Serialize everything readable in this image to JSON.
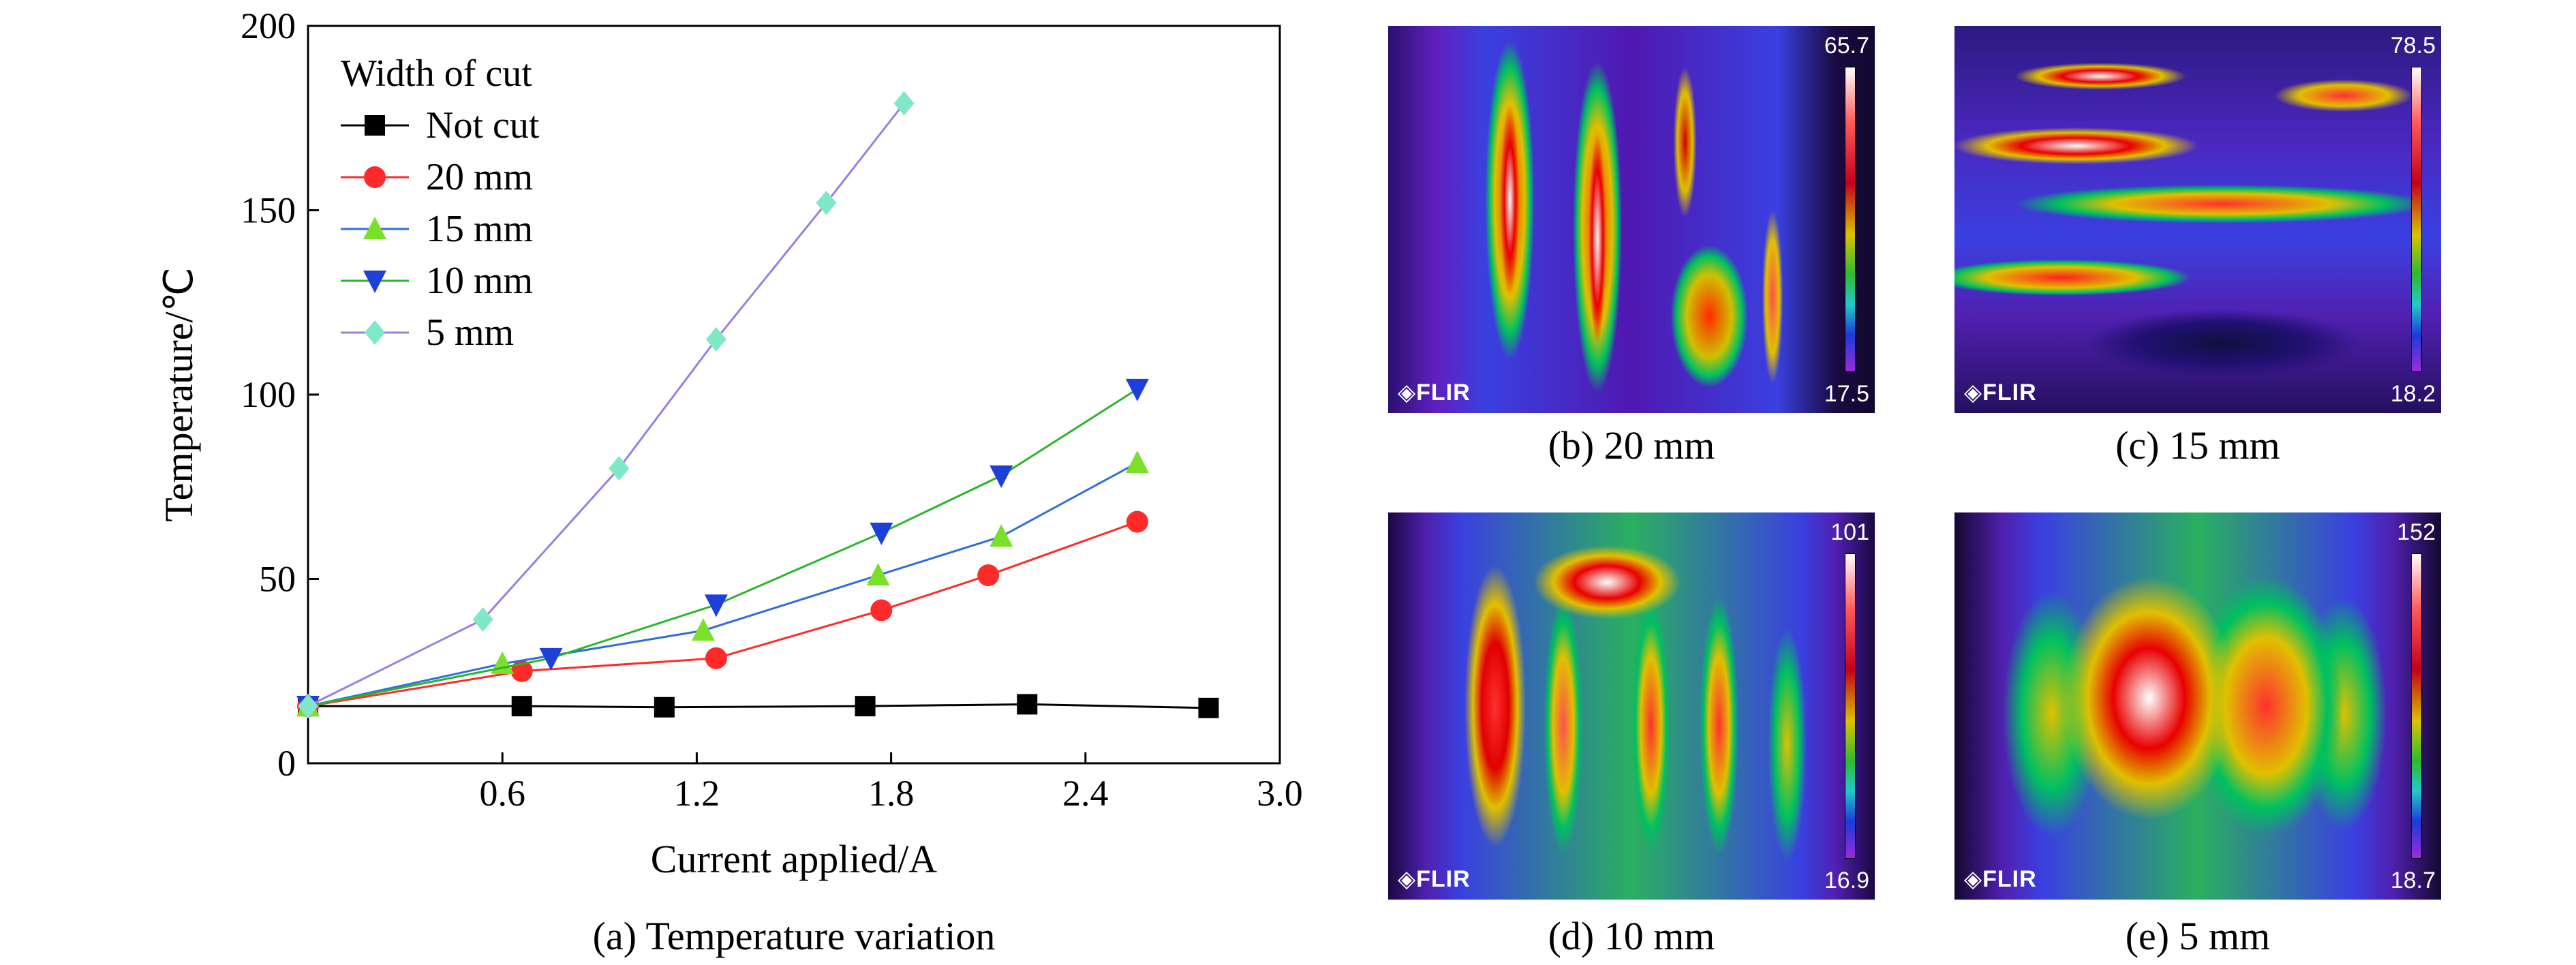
{
  "chart_data": {
    "type": "line",
    "title": "",
    "xlabel": "Current applied/A",
    "ylabel": "Temperature/℃",
    "xlim": [
      0,
      3.0
    ],
    "ylim": [
      0,
      200
    ],
    "xticks": [
      0.6,
      1.2,
      1.8,
      2.4,
      3.0
    ],
    "xtick_labels": [
      "0.6",
      "1.2",
      "1.8",
      "2.4",
      "3.0"
    ],
    "yticks": [
      0,
      50,
      100,
      150,
      200
    ],
    "ytick_labels": [
      "0",
      "50",
      "100",
      "150",
      "200"
    ],
    "legend_title": "Width of cut",
    "legend_position": "top-left",
    "series": [
      {
        "name": "Not cut",
        "color": "#000000",
        "marker": "square",
        "x": [
          0,
          0.66,
          1.1,
          1.72,
          2.22,
          2.78
        ],
        "y": [
          15.5,
          15.5,
          15.2,
          15.5,
          16.0,
          15.0
        ]
      },
      {
        "name": "20 mm",
        "color": "#ff2a2a",
        "marker": "circle",
        "x": [
          0,
          0.66,
          1.26,
          1.77,
          2.1,
          2.56
        ],
        "y": [
          15.5,
          25,
          28.5,
          41.5,
          51,
          65.5
        ]
      },
      {
        "name": "15 mm",
        "color": "#2e6edb",
        "marker": "triangle-up",
        "x": [
          0,
          0.6,
          1.22,
          1.76,
          2.14,
          2.56
        ],
        "y": [
          15.5,
          27,
          36,
          51,
          61.5,
          81.5
        ]
      },
      {
        "name": "10 mm",
        "color": "#2ab62a",
        "marker": "triangle-down",
        "x": [
          0,
          0.75,
          1.26,
          1.77,
          2.14,
          2.56
        ],
        "y": [
          15.5,
          28.5,
          43,
          62.5,
          78,
          101.5
        ]
      },
      {
        "name": "5 mm",
        "color": "#9b7fe0",
        "marker": "diamond",
        "x": [
          0,
          0.54,
          0.96,
          1.26,
          1.6,
          1.84
        ],
        "y": [
          15.5,
          39,
          80,
          115,
          152,
          179
        ]
      }
    ],
    "marker_colors": {
      "Not cut": "#000000",
      "20 mm": "#ff2a2a",
      "15 mm": "#7ae02a",
      "10 mm": "#1e3fd8",
      "5 mm": "#7fe8c8"
    }
  },
  "panel_a_caption": "(a) Temperature variation",
  "thermal_panels": [
    {
      "id": "b",
      "caption": "(b) 20 mm",
      "scale_max": "65.7",
      "scale_min": "17.5",
      "brand": "◈FLIR"
    },
    {
      "id": "c",
      "caption": "(c) 15 mm",
      "scale_max": "78.5",
      "scale_min": "18.2",
      "brand": "◈FLIR"
    },
    {
      "id": "d",
      "caption": "(d) 10 mm",
      "scale_max": "101",
      "scale_min": "16.9",
      "brand": "◈FLIR"
    },
    {
      "id": "e",
      "caption": "(e) 5 mm",
      "scale_max": "152",
      "scale_min": "18.7",
      "brand": "◈FLIR"
    }
  ]
}
